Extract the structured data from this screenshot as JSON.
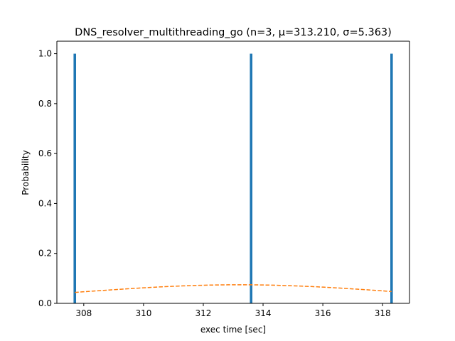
{
  "chart_data": {
    "type": "bar",
    "title": "DNS_resolver_multithreading_go (n=3, μ=313.210, σ=5.363)",
    "xlabel": "exec time [sec]",
    "ylabel": "Probability",
    "xlim": [
      307.1,
      318.9
    ],
    "ylim": [
      0.0,
      1.05
    ],
    "xticks": [
      308,
      310,
      312,
      314,
      316,
      318
    ],
    "yticks": [
      0.0,
      0.2,
      0.4,
      0.6,
      0.8,
      1.0
    ],
    "xtick_labels": [
      "308",
      "310",
      "312",
      "314",
      "316",
      "318"
    ],
    "ytick_labels": [
      "0.0",
      "0.2",
      "0.4",
      "0.6",
      "0.8",
      "1.0"
    ],
    "bar_width": 0.085,
    "series": [
      {
        "kind": "histogram",
        "color": "#1f77b4",
        "x": [
          307.7,
          313.6,
          318.3
        ],
        "values": [
          1.0,
          1.0,
          1.0
        ]
      },
      {
        "kind": "normal-pdf-fit",
        "color": "#ff7f0e",
        "style": "dashed",
        "mu": 313.21,
        "sigma": 5.363
      }
    ],
    "grid": false,
    "legend": "none"
  }
}
